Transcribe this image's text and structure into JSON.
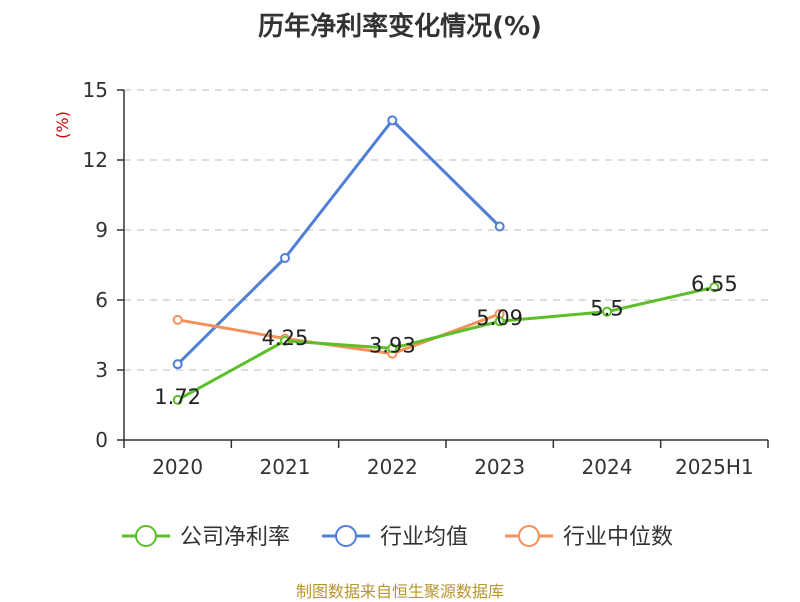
{
  "title": "历年净利率变化情况(%)",
  "source": "制图数据来自恒生聚源数据库",
  "chart_data": {
    "type": "line",
    "title": "历年净利率变化情况(%)",
    "ylabel": "(%)",
    "categories": [
      "2020",
      "2021",
      "2022",
      "2023",
      "2024",
      "2025H1"
    ],
    "ylim": [
      0,
      15
    ],
    "yticks": [
      0,
      3,
      6,
      9,
      12,
      15
    ],
    "grid": true,
    "legend_position": "bottom",
    "series": [
      {
        "name": "公司净利率",
        "color": "#5cbf2a",
        "values": [
          1.72,
          4.25,
          3.93,
          5.09,
          5.5,
          6.55
        ],
        "show_labels": true
      },
      {
        "name": "行业均值",
        "color": "#4f7fd6",
        "values": [
          3.25,
          7.8,
          13.7,
          9.15,
          null,
          null
        ],
        "show_labels": false
      },
      {
        "name": "行业中位数",
        "color": "#f4905a",
        "values": [
          5.15,
          4.35,
          3.7,
          5.4,
          null,
          null
        ],
        "show_labels": false
      }
    ]
  }
}
